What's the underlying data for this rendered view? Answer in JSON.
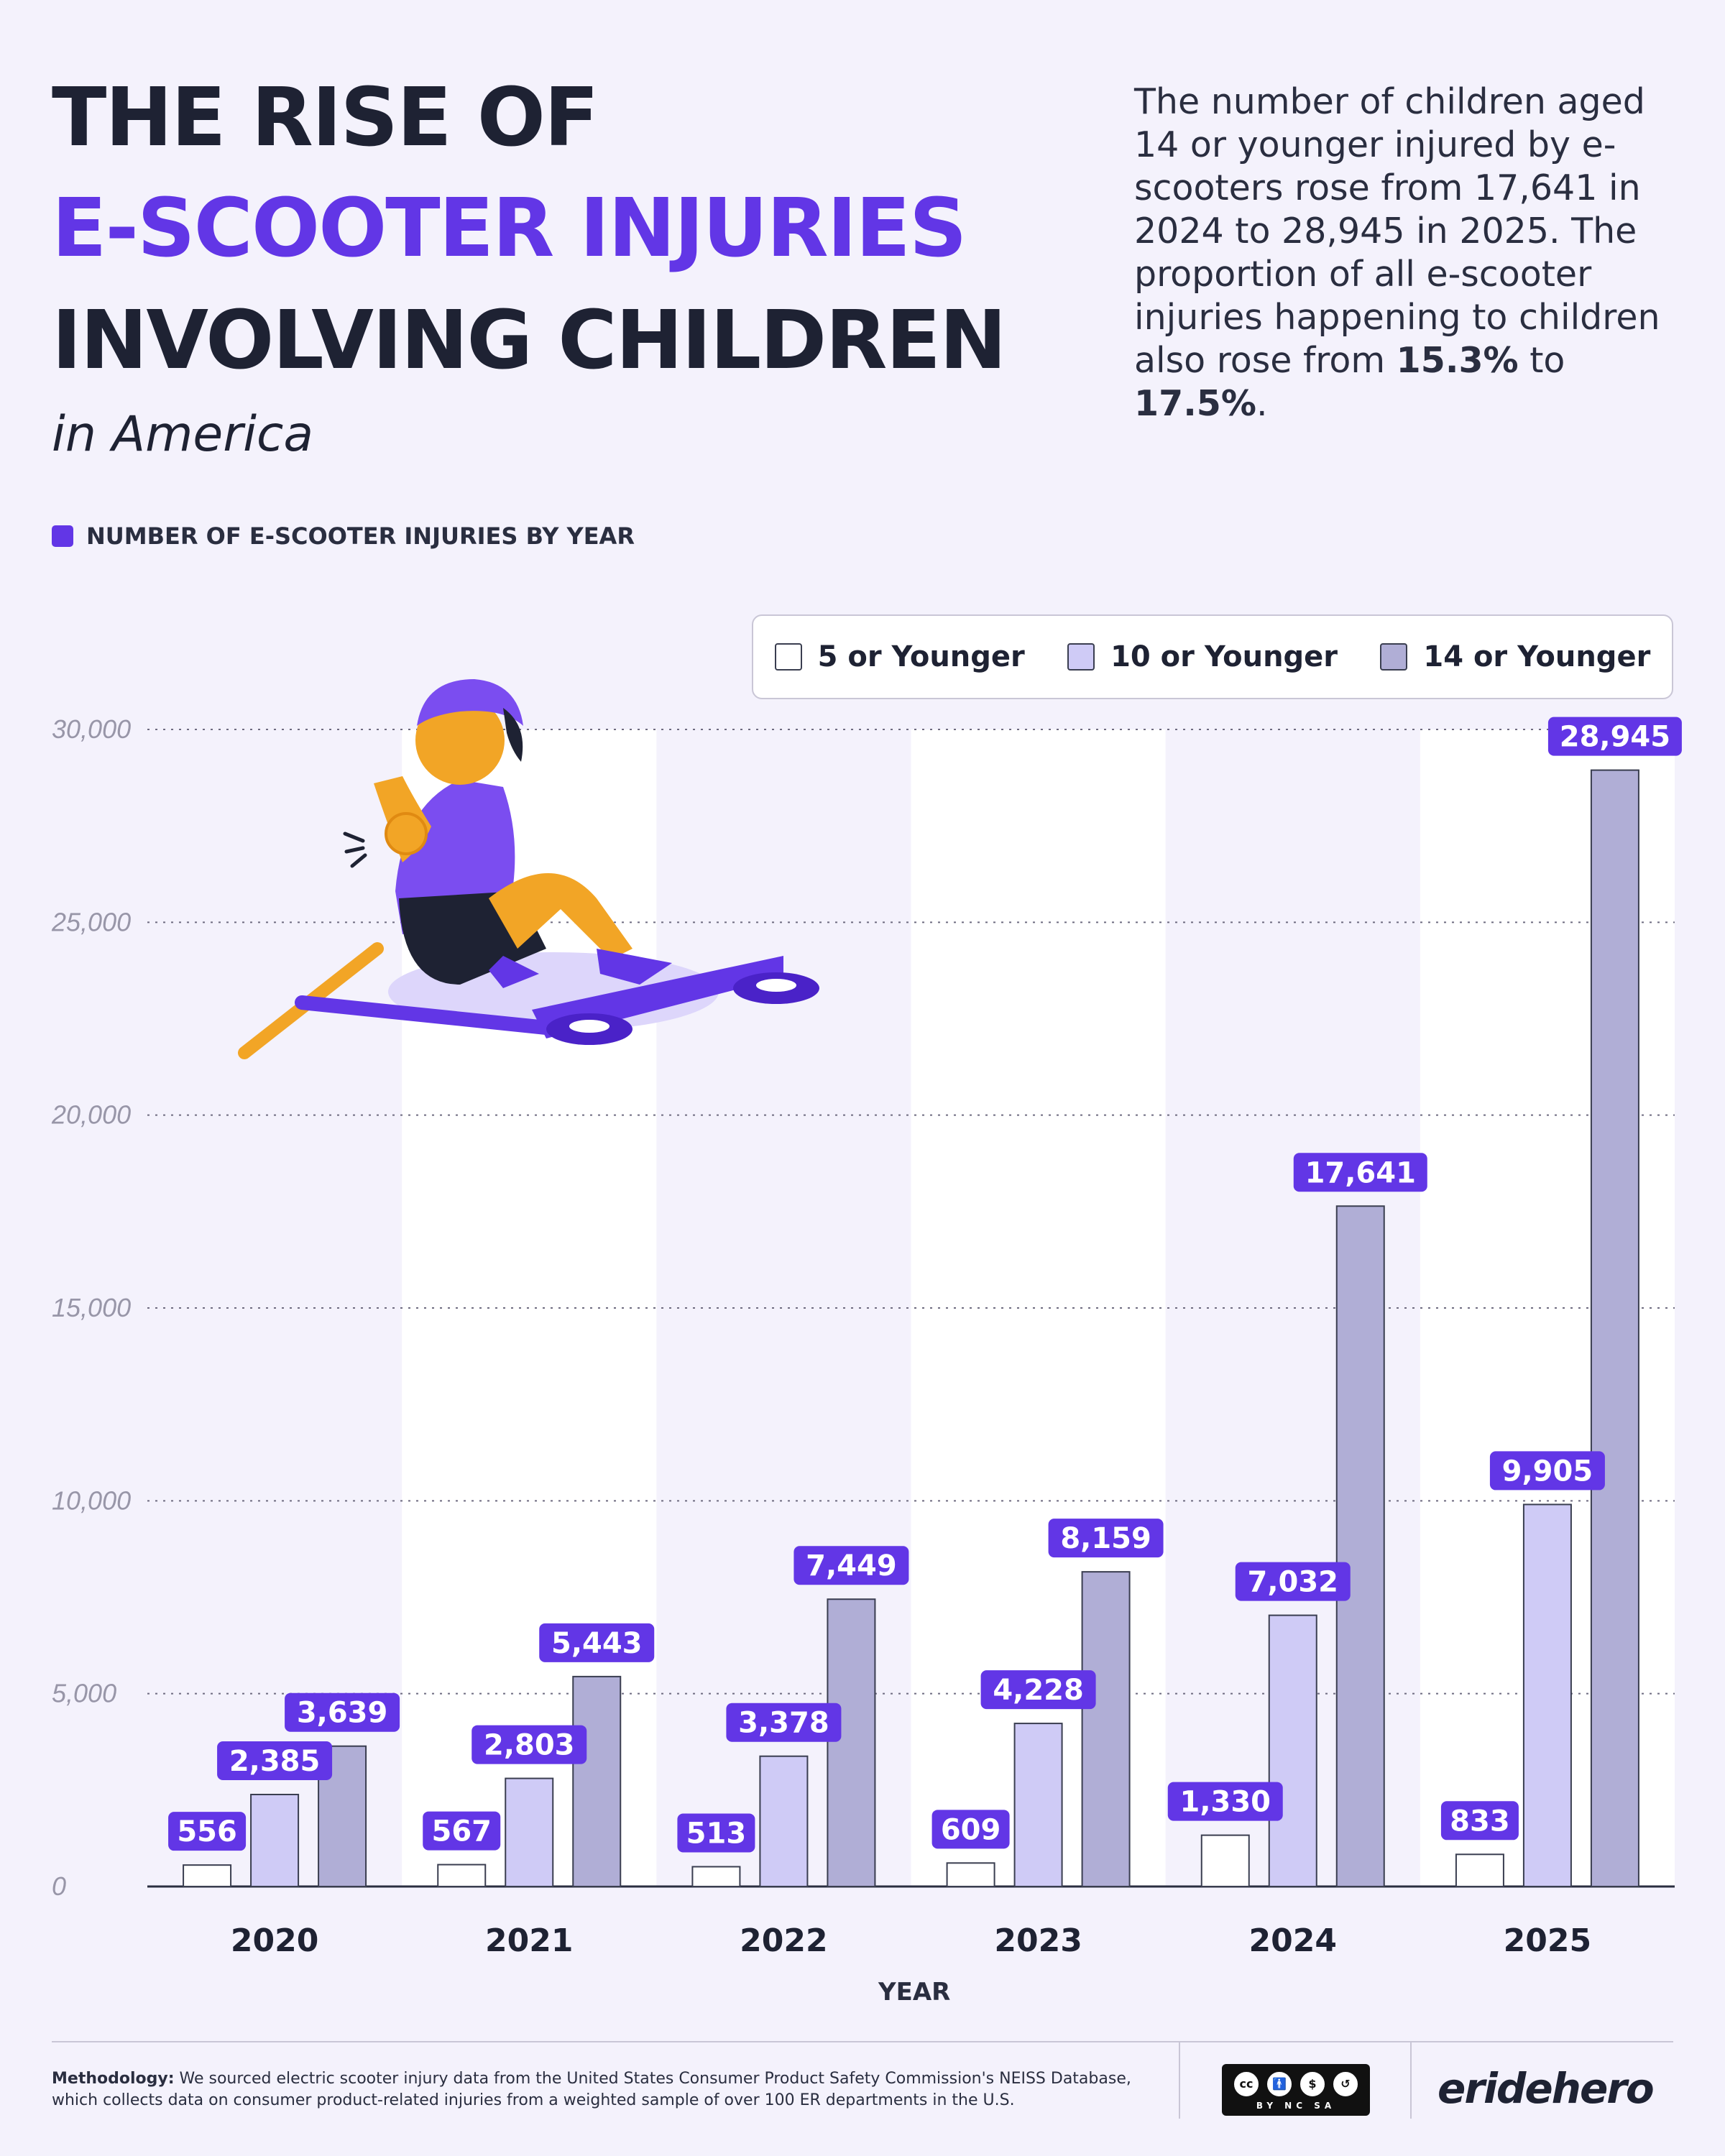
{
  "header": {
    "title_line1": "THE RISE OF",
    "title_line2": "E-SCOOTER INJURIES",
    "title_line3": "INVOLVING CHILDREN",
    "subtitle": "in America"
  },
  "intro": {
    "part1": "The number of children aged 14 or younger injured by e-scooters rose from 17,641 in 2024 to 28,945 in 2025. The proportion of all e-scooter injuries happening to children also rose from ",
    "pct_from": "15.3%",
    "part2": " to ",
    "pct_to": "17.5%",
    "part3": "."
  },
  "section_label": "NUMBER OF E-SCOOTER INJURIES BY YEAR",
  "legend": [
    {
      "label": "5 or Younger",
      "color": "#ffffff"
    },
    {
      "label": "10 or Younger",
      "color": "#cfcbf6"
    },
    {
      "label": "14 or Younger",
      "color": "#b0aed6"
    }
  ],
  "colors": {
    "accent": "#6236e6",
    "title_dark": "#1e2233",
    "background": "#f4f2fc",
    "column_band": "#ffffff"
  },
  "chart_data": {
    "type": "bar",
    "categories": [
      "2020",
      "2021",
      "2022",
      "2023",
      "2024",
      "2025"
    ],
    "series": [
      {
        "name": "5 or Younger",
        "values": [
          556,
          567,
          513,
          609,
          1330,
          833
        ]
      },
      {
        "name": "10 or Younger",
        "values": [
          2385,
          2803,
          3378,
          4228,
          7032,
          9905
        ]
      },
      {
        "name": "14 or Younger",
        "values": [
          3639,
          5443,
          7449,
          8159,
          17641,
          28945
        ]
      }
    ],
    "value_labels": [
      [
        "556",
        "567",
        "513",
        "609",
        "1,330",
        "833"
      ],
      [
        "2,385",
        "2,803",
        "3,378",
        "4,228",
        "7,032",
        "9,905"
      ],
      [
        "3,639",
        "5,443",
        "7,449",
        "8,159",
        "17,641",
        "28,945"
      ]
    ],
    "yticks": [
      0,
      5000,
      10000,
      15000,
      20000,
      25000,
      30000
    ],
    "ytick_labels": [
      "0",
      "5,000",
      "10,000",
      "15,000",
      "20,000",
      "25,000",
      "30,000"
    ],
    "ylim": [
      0,
      30000
    ],
    "xlabel": "YEAR",
    "ylabel": "",
    "grid": true,
    "legend_position": "top-right"
  },
  "illustration": {
    "subject": "child with injured arm sitting beside a fallen e-scooter"
  },
  "footer": {
    "methodology_label": "Methodology:",
    "methodology_text": " We sourced electric scooter injury data from the United States Consumer Product Safety Commission's NEISS Database, which collects data on consumer product-related injuries from a weighted sample of over 100 ER departments in the U.S.",
    "license_icons": [
      "cc",
      "by",
      "nc",
      "sa"
    ],
    "license_text": "BY NC SA",
    "brand": "eridehero"
  }
}
